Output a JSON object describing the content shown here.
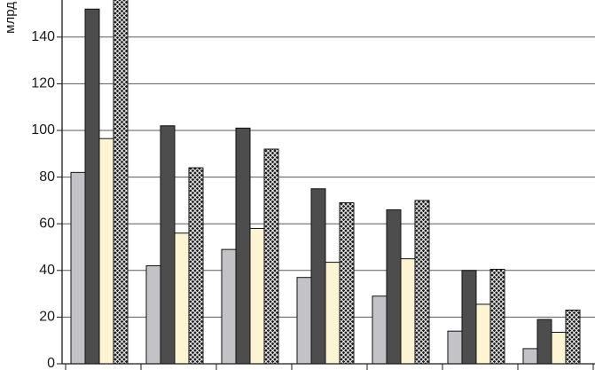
{
  "chart_data": {
    "type": "bar",
    "title": "",
    "xlabel": "",
    "ylabel": "млрд",
    "ylim": [
      0,
      160
    ],
    "yticks": [
      0,
      20,
      40,
      60,
      80,
      100,
      120,
      140
    ],
    "grid": true,
    "legend": "none",
    "categories": [
      "",
      "",
      "",
      "",
      "",
      "",
      ""
    ],
    "series": [
      {
        "values": [
          82,
          42,
          49,
          37,
          29,
          14,
          6.5
        ],
        "color": "#c3c3c7",
        "pattern": "solid"
      },
      {
        "values": [
          152,
          102,
          101,
          75,
          66,
          40,
          19
        ],
        "color": "#4d4d4d",
        "pattern": "solid"
      },
      {
        "values": [
          96.5,
          56,
          58,
          43.5,
          45,
          25.5,
          13.5
        ],
        "color": "#fdf4d4",
        "pattern": "solid"
      },
      {
        "values": [
          158,
          84,
          92,
          69,
          70,
          40.5,
          23
        ],
        "color": "#1f1f1f",
        "pattern": "diamond-hatch"
      }
    ]
  }
}
